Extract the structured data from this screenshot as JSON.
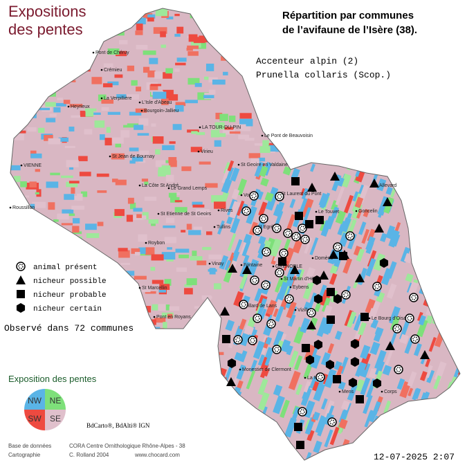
{
  "header": {
    "title": [
      "Expositions",
      "des pentes"
    ],
    "subtitle": [
      "Répartition par communes",
      "de l’avifaune de l’Isère (38)."
    ]
  },
  "species": {
    "common_name": "Accenteur alpin  (2)",
    "latin_name": "Prunella collaris (Scop.)"
  },
  "legend": {
    "items": [
      "animal présent",
      "nicheur possible",
      "nicheur probable",
      "nicheur certain"
    ],
    "count": "Observé dans 72 communes"
  },
  "exposition": {
    "title": "Exposition des pentes",
    "quadrants": [
      "NW",
      "NE",
      "SW",
      "SE"
    ]
  },
  "sources": {
    "ign": "BdCarto®, BdAlti® IGN",
    "database_label": "Base de données",
    "database": "CORA Centre Ornithologique Rhône-Alpes - 38",
    "mapping_label": "Cartographie",
    "mapping": "C. Rolland 2004",
    "website": "www.chocard.com"
  },
  "timestamp": "12-07-2025 2:07",
  "places": [
    "Pont de Chéruy",
    "Crémieu",
    "La Verpillière",
    "L'Isle d'Abeau",
    "Heyrieux",
    "Bourgoin-Jallieu",
    "LA TOUR-DU-PIN",
    "Le Pont de Beauvoisin",
    "VIENNE",
    "St Jean de Bournay",
    "Virieu",
    "St Geoire en Valdaine",
    "La Côte St André",
    "Le Grand Lemps",
    "Roussillon",
    "St Etienne de St Geoirs",
    "Rives",
    "Voiron",
    "St Laurent du Pont",
    "Le Touvet",
    "Allevard",
    "Goncelin",
    "Tullins",
    "Roybon",
    "St Egrève",
    "Domène",
    "Fontaine",
    "GRENOBLE",
    "St Martin d'Hères",
    "Vinay",
    "Eybens",
    "St Marcellin",
    "Vizille",
    "Villard de Lans",
    "Le Bourg d'Oisans",
    "Pont en Royans",
    "Monestier de Clermont",
    "La Mure",
    "Mens",
    "Corps"
  ]
}
